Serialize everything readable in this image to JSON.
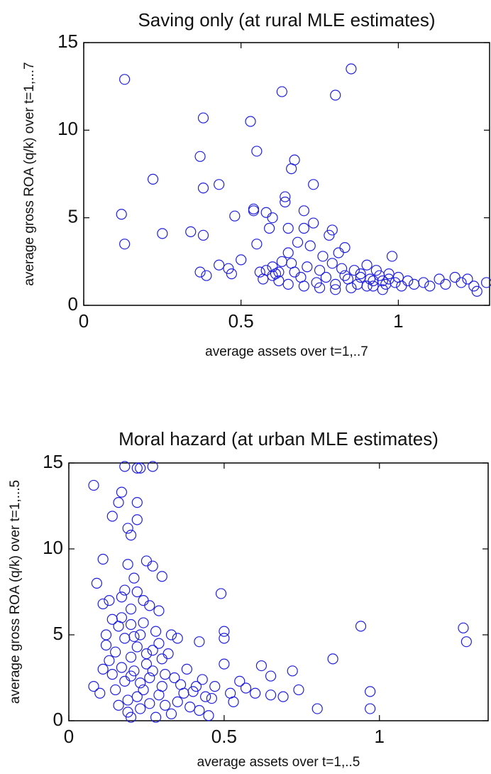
{
  "chart_data": [
    {
      "type": "scatter",
      "title": "Saving only (at rural MLE estimates)",
      "x_label": "average assets over t=1,..7",
      "y_label": "average gross ROA (q/k) over t=1,...7",
      "color": "#2020e0",
      "xlim": [
        0,
        1.29
      ],
      "ylim": [
        0,
        15
      ],
      "xticks": [
        0,
        0.5,
        1
      ],
      "yticks": [
        0,
        5,
        10,
        15
      ],
      "x": [
        0.13,
        0.12,
        0.13,
        0.22,
        0.25,
        0.34,
        0.37,
        0.38,
        0.38,
        0.38,
        0.37,
        0.39,
        0.43,
        0.43,
        0.46,
        0.47,
        0.48,
        0.5,
        0.53,
        0.54,
        0.54,
        0.55,
        0.55,
        0.56,
        0.57,
        0.58,
        0.59,
        0.6,
        0.6,
        0.61,
        0.62,
        0.63,
        0.63,
        0.64,
        0.64,
        0.65,
        0.65,
        0.66,
        0.66,
        0.67,
        0.67,
        0.68,
        0.69,
        0.7,
        0.7,
        0.71,
        0.72,
        0.73,
        0.73,
        0.74,
        0.75,
        0.76,
        0.77,
        0.78,
        0.79,
        0.79,
        0.8,
        0.8,
        0.81,
        0.82,
        0.83,
        0.84,
        0.85,
        0.86,
        0.87,
        0.88,
        0.9,
        0.91,
        0.92,
        0.93,
        0.94,
        0.95,
        0.96,
        0.97,
        0.98,
        0.99,
        1.0,
        1.01,
        1.03,
        1.05,
        1.08,
        1.1,
        1.13,
        1.15,
        1.18,
        1.2,
        1.22,
        1.24,
        1.25,
        1.28,
        0.6,
        0.65,
        0.7,
        0.75,
        0.8,
        0.85,
        0.9,
        0.95,
        0.97,
        0.92,
        0.88,
        0.83,
        0.58,
        0.62
      ],
      "values": [
        12.9,
        5.2,
        3.5,
        7.2,
        4.1,
        4.2,
        8.5,
        10.7,
        6.7,
        4.0,
        1.9,
        1.7,
        6.9,
        2.3,
        2.1,
        1.8,
        5.1,
        2.6,
        10.5,
        5.5,
        5.4,
        8.8,
        3.5,
        1.9,
        1.5,
        5.3,
        4.4,
        5.0,
        2.2,
        1.8,
        1.4,
        12.2,
        2.5,
        6.2,
        5.9,
        4.4,
        3.0,
        2.4,
        7.8,
        8.3,
        1.9,
        3.6,
        1.6,
        4.4,
        5.4,
        2.2,
        3.4,
        6.9,
        4.7,
        1.3,
        2.0,
        2.8,
        1.6,
        4.0,
        2.4,
        4.3,
        12.0,
        1.2,
        3.0,
        2.1,
        3.3,
        1.5,
        13.5,
        2.0,
        1.2,
        1.8,
        2.3,
        1.5,
        1.1,
        2.0,
        1.7,
        1.4,
        1.2,
        1.8,
        2.8,
        1.3,
        1.6,
        1.1,
        1.4,
        1.2,
        1.3,
        1.1,
        1.5,
        1.2,
        1.6,
        1.3,
        1.5,
        1.1,
        0.8,
        1.3,
        1.7,
        1.2,
        1.1,
        1.0,
        0.9,
        1.0,
        1.1,
        0.9,
        1.5,
        1.4,
        1.6,
        1.7,
        2.0,
        1.9
      ]
    },
    {
      "type": "scatter",
      "title": "Moral hazard (at urban MLE estimates)",
      "x_label": "average assets over t=1,..5",
      "y_label": "average gross ROA (q/k) over t=1,...5",
      "color": "#2020e0",
      "xlim": [
        0,
        1.35
      ],
      "ylim": [
        0,
        15
      ],
      "xticks": [
        0,
        0.5,
        1
      ],
      "yticks": [
        0,
        5,
        10,
        15
      ],
      "x": [
        0.08,
        0.08,
        0.09,
        0.11,
        0.12,
        0.13,
        0.14,
        0.16,
        0.17,
        0.18,
        0.19,
        0.22,
        0.22,
        0.22,
        0.23,
        0.27,
        0.2,
        0.19,
        0.25,
        0.27,
        0.3,
        0.18,
        0.22,
        0.26,
        0.29,
        0.17,
        0.2,
        0.23,
        0.33,
        0.35,
        0.42,
        0.49,
        0.5,
        0.5,
        0.94,
        0.85,
        1.27,
        1.28,
        0.97,
        0.97,
        0.8,
        0.74,
        0.72,
        0.65,
        0.65,
        0.62,
        0.57,
        0.55,
        0.52,
        0.5,
        0.47,
        0.46,
        0.43,
        0.42,
        0.4,
        0.38,
        0.36,
        0.35,
        0.33,
        0.31,
        0.3,
        0.29,
        0.28,
        0.27,
        0.26,
        0.25,
        0.24,
        0.23,
        0.22,
        0.21,
        0.2,
        0.2,
        0.19,
        0.18,
        0.18,
        0.17,
        0.16,
        0.16,
        0.15,
        0.15,
        0.14,
        0.13,
        0.12,
        0.11,
        0.1,
        0.2,
        0.24,
        0.28,
        0.32,
        0.34,
        0.26,
        0.22,
        0.19,
        0.31,
        0.37,
        0.41,
        0.44,
        0.27,
        0.23,
        0.21,
        0.25,
        0.29,
        0.17,
        0.21,
        0.24,
        0.14,
        0.11,
        0.53,
        0.6,
        0.69,
        0.45,
        0.39,
        0.3,
        0.2
      ],
      "values": [
        13.7,
        2.0,
        8.0,
        9.4,
        5.0,
        7.0,
        11.9,
        12.7,
        13.3,
        14.8,
        11.2,
        14.7,
        12.7,
        11.7,
        14.7,
        14.8,
        10.8,
        9.1,
        9.3,
        9.0,
        8.4,
        7.6,
        7.5,
        6.7,
        6.4,
        6.0,
        5.6,
        5.0,
        5.0,
        4.8,
        4.6,
        7.4,
        5.2,
        4.8,
        5.5,
        3.6,
        5.4,
        4.6,
        1.7,
        0.7,
        0.7,
        1.8,
        2.9,
        2.6,
        1.5,
        3.2,
        1.9,
        2.3,
        1.6,
        3.3,
        2.0,
        1.3,
        2.4,
        0.6,
        1.7,
        3.0,
        2.1,
        1.1,
        0.4,
        2.7,
        3.6,
        1.5,
        0.2,
        4.1,
        2.5,
        3.3,
        1.8,
        0.7,
        4.3,
        2.9,
        0.2,
        3.7,
        1.2,
        4.8,
        2.3,
        3.1,
        0.9,
        5.5,
        4.0,
        1.8,
        2.7,
        3.5,
        4.4,
        3.0,
        1.6,
        6.5,
        5.7,
        5.2,
        3.9,
        2.5,
        1.0,
        1.4,
        0.5,
        0.9,
        1.6,
        2.0,
        1.4,
        2.9,
        2.2,
        4.9,
        3.9,
        4.5,
        7.2,
        8.3,
        7.0,
        5.9,
        6.8,
        1.1,
        1.6,
        1.4,
        0.3,
        0.8,
        2.0,
        2.6
      ]
    }
  ]
}
